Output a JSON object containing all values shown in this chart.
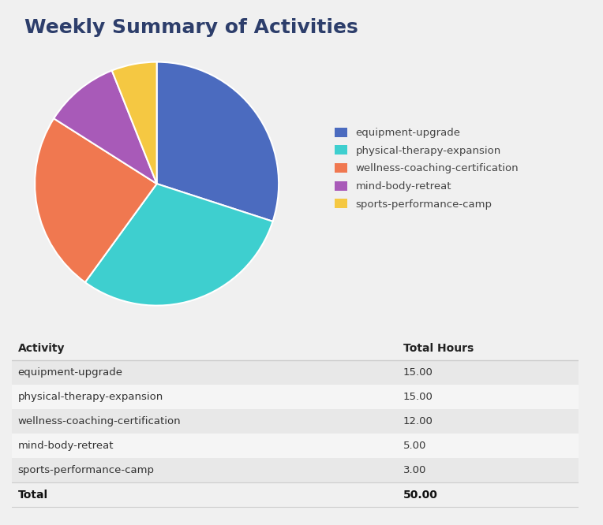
{
  "title": "Weekly Summary of Activities",
  "title_color": "#2d3e6b",
  "background_color": "#f0f0f0",
  "pie_data": {
    "labels": [
      "equipment-upgrade",
      "physical-therapy-expansion",
      "wellness-coaching-certification",
      "mind-body-retreat",
      "sports-performance-camp"
    ],
    "values": [
      15,
      15,
      12,
      5,
      3
    ],
    "colors": [
      "#4b6bbf",
      "#3ecfcf",
      "#f07850",
      "#a85ab8",
      "#f5c842"
    ]
  },
  "table_data": {
    "headers": [
      "Activity",
      "Total Hours"
    ],
    "rows": [
      [
        "equipment-upgrade",
        "15.00"
      ],
      [
        "physical-therapy-expansion",
        "15.00"
      ],
      [
        "wellness-coaching-certification",
        "12.00"
      ],
      [
        "mind-body-retreat",
        "5.00"
      ],
      [
        "sports-performance-camp",
        "3.00"
      ]
    ],
    "total_row": [
      "Total",
      "50.00"
    ],
    "row_colors": [
      "#e8e8e8",
      "#f5f5f5"
    ],
    "text_color": "#333333",
    "header_text_color": "#222222",
    "total_text_color": "#111111",
    "line_color": "#cccccc"
  },
  "legend_text_color": "#444444",
  "figsize": [
    7.64,
    6.66
  ],
  "dpi": 100
}
